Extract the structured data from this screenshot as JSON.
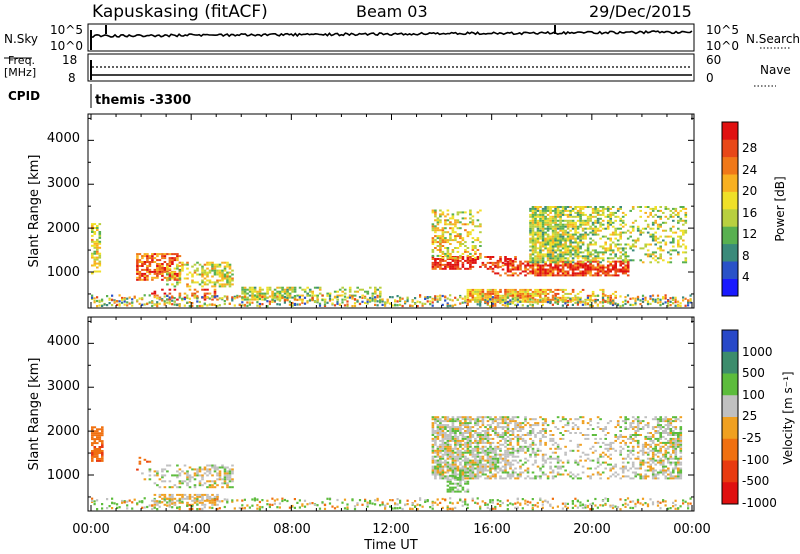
{
  "header": {
    "station": "Kapuskasing (fitACF)",
    "beam": "Beam 03",
    "date": "29/Dec/2015"
  },
  "panels": {
    "nsky": {
      "label": "N.Sky",
      "left_ticks": [
        "10^5",
        "10^0"
      ],
      "right_ticks": [
        "10^5",
        "10^0"
      ],
      "right_label": "N.Search"
    },
    "freq": {
      "label_line1": "Freq.",
      "label_line2": "[MHz]",
      "left_ticks": [
        "18",
        "8"
      ],
      "right_ticks": [
        "60",
        "0"
      ],
      "right_label": "Nave"
    },
    "cpid": {
      "label": "CPID",
      "value": "themis -3300"
    }
  },
  "axes": {
    "ylabel": "Slant Range [km]",
    "yticks": [
      "1000",
      "2000",
      "3000",
      "4000"
    ],
    "xlabel": "Time UT",
    "xticks": [
      "00:00",
      "04:00",
      "08:00",
      "12:00",
      "16:00",
      "20:00",
      "00:00"
    ]
  },
  "colorbars": {
    "power": {
      "label": "Power [dB]",
      "ticks": [
        "4",
        "8",
        "12",
        "16",
        "20",
        "24",
        "28"
      ],
      "colors": [
        "#1a1aff",
        "#2a52c8",
        "#3a8a7a",
        "#58b050",
        "#b8d040",
        "#f0e028",
        "#f8b020",
        "#f07818",
        "#e84818",
        "#e01010"
      ]
    },
    "velocity": {
      "label": "Velocity [m s⁻¹]",
      "ticks": [
        "1000",
        "500",
        "100",
        "25",
        "-25",
        "-100",
        "-500",
        "-1000"
      ],
      "colors": [
        "#2848c8",
        "#3c8c6c",
        "#5cbc3c",
        "#c0c0c0",
        "#f0a020",
        "#f07010",
        "#e83a10",
        "#e01010"
      ]
    }
  },
  "chart_data": [
    {
      "type": "heatmap",
      "title": "",
      "xlabel": "Time UT",
      "ylabel": "Slant Range [km]",
      "xlim": [
        "00:00",
        "24:00"
      ],
      "ylim": [
        180,
        4600
      ],
      "colorbar_label": "Power [dB]",
      "colorbar_range": [
        0,
        30
      ],
      "features": [
        {
          "time_start": 0.0,
          "time_end": 0.4,
          "range_start": 900,
          "range_end": 2100,
          "power": 16
        },
        {
          "time_start": 1.8,
          "time_end": 3.6,
          "range_start": 800,
          "range_end": 1400,
          "power": 24
        },
        {
          "time_start": 2.4,
          "time_end": 5.0,
          "range_start": 350,
          "range_end": 600,
          "power": 26
        },
        {
          "time_start": 3.0,
          "time_end": 5.6,
          "range_start": 650,
          "range_end": 1200,
          "power": 16
        },
        {
          "time_start": 6.0,
          "time_end": 11.5,
          "range_start": 350,
          "range_end": 650,
          "power": 14
        },
        {
          "time_start": 13.6,
          "time_end": 17.0,
          "range_start": 1050,
          "range_end": 1350,
          "power": 28
        },
        {
          "time_start": 13.6,
          "time_end": 15.5,
          "range_start": 1300,
          "range_end": 2400,
          "power": 16
        },
        {
          "time_start": 16.0,
          "time_end": 21.5,
          "range_start": 900,
          "range_end": 1250,
          "power": 26
        },
        {
          "time_start": 17.5,
          "time_end": 23.8,
          "range_start": 1200,
          "range_end": 2500,
          "power": 14
        },
        {
          "time_start": 15.0,
          "time_end": 21.0,
          "range_start": 300,
          "range_end": 600,
          "power": 20
        }
      ]
    },
    {
      "type": "heatmap",
      "title": "",
      "xlabel": "Time UT",
      "ylabel": "Slant Range [km]",
      "xlim": [
        "00:00",
        "24:00"
      ],
      "ylim": [
        180,
        4600
      ],
      "colorbar_label": "Velocity [m s⁻¹]",
      "colorbar_range": [
        -1000,
        1000
      ],
      "features": [
        {
          "time_start": 0.0,
          "time_end": 0.5,
          "range_start": 1300,
          "range_end": 2100,
          "velocity": -300
        },
        {
          "time_start": 1.8,
          "time_end": 2.4,
          "range_start": 1100,
          "range_end": 1400,
          "velocity": -300
        },
        {
          "time_start": 2.0,
          "time_end": 5.6,
          "range_start": 700,
          "range_end": 1200,
          "velocity": 0
        },
        {
          "time_start": 2.4,
          "time_end": 5.0,
          "range_start": 300,
          "range_end": 550,
          "velocity": -60
        },
        {
          "time_start": 13.6,
          "time_end": 23.6,
          "range_start": 900,
          "range_end": 2300,
          "velocity": 0
        },
        {
          "time_start": 14.2,
          "time_end": 15.0,
          "range_start": 600,
          "range_end": 1000,
          "velocity": 100
        }
      ]
    }
  ]
}
